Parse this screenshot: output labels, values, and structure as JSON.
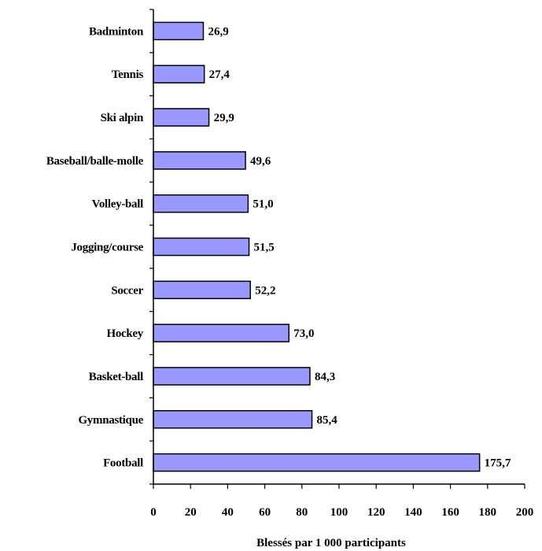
{
  "chart_data": {
    "type": "bar",
    "orientation": "horizontal",
    "categories": [
      "Badminton",
      "Tennis",
      "Ski alpin",
      "Baseball/balle-molle",
      "Volley-ball",
      "Jogging/course",
      "Soccer",
      "Hockey",
      "Basket-ball",
      "Gymnastique",
      "Football"
    ],
    "values": [
      26.9,
      27.4,
      29.9,
      49.6,
      51.0,
      51.5,
      52.2,
      73.0,
      84.3,
      85.4,
      175.7
    ],
    "value_labels": [
      "26,9",
      "27,4",
      "29,9",
      "49,6",
      "51,0",
      "51,5",
      "52,2",
      "73,0",
      "84,3",
      "85,4",
      "175,7"
    ],
    "xticks": [
      "0",
      "20",
      "40",
      "60",
      "80",
      "100",
      "120",
      "140",
      "160",
      "180",
      "200"
    ],
    "xlim": [
      0,
      200
    ],
    "xlabel": "Blessés par 1 000 participants",
    "ylabel": "",
    "title": "",
    "grid": false,
    "bar_color": "#9999ff",
    "bar_edge_color": "#000000"
  }
}
